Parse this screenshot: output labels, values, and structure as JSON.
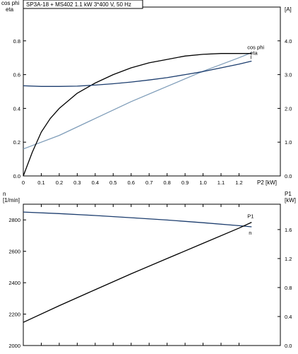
{
  "chart_data": [
    {
      "type": "line",
      "title": "SP3A-18 + MS402    1.1 kW    3*400 V, 50 Hz",
      "left_axis_title": [
        "cos phi",
        "eta"
      ],
      "right_axis_title": "[A]",
      "xlabel": "P2 [kW]",
      "x_ticks": [
        "0",
        "0.1",
        "0.2",
        "0.3",
        "0.4",
        "0.5",
        "0.6",
        "0.7",
        "0.8",
        "0.9",
        "1.0",
        "1.1",
        "1.2"
      ],
      "xlim": [
        0,
        1.43
      ],
      "left_ticks": [
        "0.0",
        "0.2",
        "0.4",
        "0.6",
        "0.8"
      ],
      "ylim_left": [
        0,
        1.0
      ],
      "right_ticks": [
        "0.0",
        "1.0",
        "2.0",
        "3.0",
        "4.0"
      ],
      "ylim_right": [
        0,
        5.0
      ],
      "series": [
        {
          "name": "cos phi",
          "axis": "left",
          "color": "#7f9db9",
          "x": [
            0,
            0.2,
            0.4,
            0.6,
            0.8,
            1.0,
            1.1,
            1.2,
            1.27
          ],
          "y": [
            0.16,
            0.24,
            0.34,
            0.44,
            0.53,
            0.62,
            0.66,
            0.7,
            0.73
          ]
        },
        {
          "name": "eta",
          "axis": "left",
          "color": "#000000",
          "x": [
            0,
            0.05,
            0.1,
            0.15,
            0.2,
            0.3,
            0.4,
            0.5,
            0.6,
            0.7,
            0.8,
            0.9,
            1.0,
            1.1,
            1.2,
            1.27
          ],
          "y": [
            0,
            0.14,
            0.26,
            0.34,
            0.4,
            0.49,
            0.55,
            0.6,
            0.64,
            0.67,
            0.69,
            0.71,
            0.72,
            0.725,
            0.725,
            0.725
          ]
        },
        {
          "name": "I",
          "axis": "right",
          "color": "#1c3d6e",
          "x": [
            0,
            0.1,
            0.2,
            0.3,
            0.4,
            0.5,
            0.6,
            0.7,
            0.8,
            0.9,
            1.0,
            1.1,
            1.2,
            1.27
          ],
          "y": [
            2.67,
            2.65,
            2.65,
            2.66,
            2.69,
            2.73,
            2.78,
            2.84,
            2.91,
            3.0,
            3.09,
            3.2,
            3.31,
            3.4
          ]
        }
      ]
    },
    {
      "type": "line",
      "left_axis_title": [
        "n",
        "[1/min]"
      ],
      "right_axis_title": [
        "P1",
        "[kW]"
      ],
      "x_ticks_shown": false,
      "xlim": [
        0,
        1.43
      ],
      "left_ticks": [
        "2000",
        "2200",
        "2400",
        "2600",
        "2800"
      ],
      "ylim_left": [
        2000,
        2900
      ],
      "right_ticks": [
        "0.0",
        "0.4",
        "0.8",
        "1.2",
        "1.6"
      ],
      "ylim_right": [
        0,
        1.95
      ],
      "series": [
        {
          "name": "n",
          "axis": "left",
          "color": "#1c3d6e",
          "x": [
            0,
            0.2,
            0.4,
            0.6,
            0.8,
            1.0,
            1.2,
            1.27
          ],
          "y": [
            2850,
            2840,
            2828,
            2814,
            2799,
            2782,
            2763,
            2756
          ]
        },
        {
          "name": "P1",
          "axis": "right",
          "color": "#000000",
          "x": [
            0,
            0.2,
            0.4,
            0.6,
            0.8,
            1.0,
            1.2,
            1.27
          ],
          "y": [
            0.32,
            0.55,
            0.77,
            0.99,
            1.2,
            1.41,
            1.62,
            1.7
          ]
        }
      ]
    }
  ]
}
